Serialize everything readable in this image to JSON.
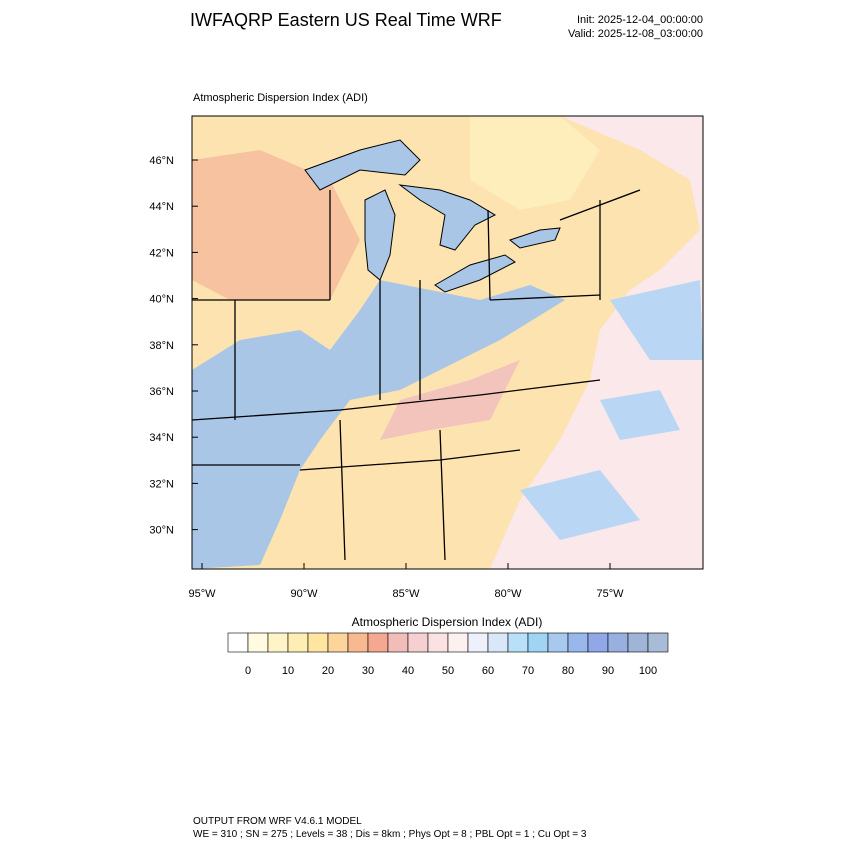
{
  "header": {
    "title": "IWFAQRP Eastern US Real Time WRF",
    "init": "Init: 2025-12-04_00:00:00",
    "valid": "Valid: 2025-12-08_03:00:00"
  },
  "map": {
    "subtitle": "Atmospheric Dispersion Index   (ADI)",
    "lat_ticks": [
      {
        "value": 46,
        "label": "46°N"
      },
      {
        "value": 44,
        "label": "44°N"
      },
      {
        "value": 42,
        "label": "42°N"
      },
      {
        "value": 40,
        "label": "40°N"
      },
      {
        "value": 38,
        "label": "38°N"
      },
      {
        "value": 36,
        "label": "36°N"
      },
      {
        "value": 34,
        "label": "34°N"
      },
      {
        "value": 32,
        "label": "32°N"
      },
      {
        "value": 30,
        "label": "30°N"
      }
    ],
    "lon_ticks": [
      {
        "value": -95,
        "label": "95°W"
      },
      {
        "value": -90,
        "label": "90°W"
      },
      {
        "value": -85,
        "label": "85°W"
      },
      {
        "value": -80,
        "label": "80°W"
      },
      {
        "value": -75,
        "label": "75°W"
      }
    ]
  },
  "colorbar": {
    "title": "Atmospheric Dispersion Index  (ADI)",
    "ticks": [
      0,
      10,
      20,
      30,
      40,
      50,
      60,
      70,
      80,
      90,
      100
    ],
    "colors": [
      "#ffffff",
      "#fffbe0",
      "#fff4c8",
      "#ffeeb4",
      "#ffe6a0",
      "#fdd49a",
      "#f8b890",
      "#f4a890",
      "#f2bcb8",
      "#f6d0d0",
      "#fae2e2",
      "#fdf0f0",
      "#eef0fb",
      "#d8e8f8",
      "#b8e0f8",
      "#a0d4f4",
      "#a8c8f0",
      "#98b8ec",
      "#90a8e8",
      "#98b0e0",
      "#a0b4d8",
      "#a8bcd8"
    ]
  },
  "footer": {
    "line1": "OUTPUT FROM WRF V4.6.1 MODEL",
    "line2": "WE = 310 ; SN = 275 ; Levels = 38 ; Dis = 8km ; Phys Opt = 8 ; PBL Opt = 1 ; Cu Opt = 3"
  }
}
